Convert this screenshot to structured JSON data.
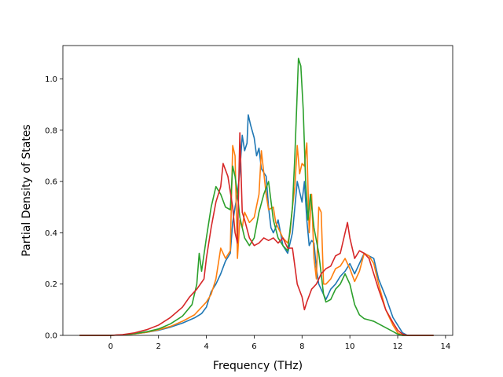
{
  "chart_data": {
    "type": "line",
    "xlabel": "Frequency (THz)",
    "ylabel": "Partial Density of States",
    "xlim": [
      -2.0,
      14.3
    ],
    "ylim": [
      0.0,
      1.13
    ],
    "xticks": [
      0,
      2,
      4,
      6,
      8,
      10,
      12,
      14
    ],
    "yticks": [
      0.0,
      0.2,
      0.4,
      0.6,
      0.8,
      1.0
    ],
    "grid": false,
    "legend": "none",
    "series": [
      {
        "color": "#1f77b4",
        "points": [
          [
            -1.3,
            0
          ],
          [
            0,
            0
          ],
          [
            0.5,
            0.002
          ],
          [
            1,
            0.006
          ],
          [
            1.5,
            0.012
          ],
          [
            2,
            0.02
          ],
          [
            2.5,
            0.032
          ],
          [
            3,
            0.048
          ],
          [
            3.5,
            0.068
          ],
          [
            3.8,
            0.085
          ],
          [
            4,
            0.11
          ],
          [
            4.2,
            0.17
          ],
          [
            4.4,
            0.2
          ],
          [
            4.6,
            0.24
          ],
          [
            4.8,
            0.29
          ],
          [
            5,
            0.32
          ],
          [
            5.1,
            0.44
          ],
          [
            5.2,
            0.5
          ],
          [
            5.3,
            0.55
          ],
          [
            5.4,
            0.64
          ],
          [
            5.5,
            0.78
          ],
          [
            5.6,
            0.72
          ],
          [
            5.7,
            0.75
          ],
          [
            5.75,
            0.86
          ],
          [
            5.85,
            0.82
          ],
          [
            6,
            0.77
          ],
          [
            6.1,
            0.7
          ],
          [
            6.2,
            0.73
          ],
          [
            6.3,
            0.65
          ],
          [
            6.5,
            0.62
          ],
          [
            6.6,
            0.5
          ],
          [
            6.7,
            0.42
          ],
          [
            6.8,
            0.4
          ],
          [
            6.9,
            0.42
          ],
          [
            7,
            0.45
          ],
          [
            7.1,
            0.4
          ],
          [
            7.2,
            0.35
          ],
          [
            7.4,
            0.32
          ],
          [
            7.6,
            0.4
          ],
          [
            7.7,
            0.5
          ],
          [
            7.8,
            0.6
          ],
          [
            7.9,
            0.56
          ],
          [
            8,
            0.52
          ],
          [
            8.1,
            0.6
          ],
          [
            8.2,
            0.45
          ],
          [
            8.3,
            0.35
          ],
          [
            8.4,
            0.37
          ],
          [
            8.5,
            0.36
          ],
          [
            8.6,
            0.26
          ],
          [
            8.7,
            0.2
          ],
          [
            8.9,
            0.16
          ],
          [
            9,
            0.14
          ],
          [
            9.2,
            0.18
          ],
          [
            9.4,
            0.2
          ],
          [
            9.6,
            0.23
          ],
          [
            9.8,
            0.25
          ],
          [
            10,
            0.28
          ],
          [
            10.2,
            0.24
          ],
          [
            10.4,
            0.28
          ],
          [
            10.6,
            0.32
          ],
          [
            10.8,
            0.31
          ],
          [
            11,
            0.3
          ],
          [
            11.2,
            0.22
          ],
          [
            11.5,
            0.15
          ],
          [
            11.8,
            0.07
          ],
          [
            12,
            0.04
          ],
          [
            12.2,
            0.01
          ],
          [
            12.4,
            0
          ],
          [
            13.5,
            0
          ]
        ]
      },
      {
        "color": "#ff7f0e",
        "points": [
          [
            -1.3,
            0
          ],
          [
            0,
            0
          ],
          [
            0.5,
            0.002
          ],
          [
            1,
            0.006
          ],
          [
            1.5,
            0.012
          ],
          [
            2,
            0.022
          ],
          [
            2.5,
            0.035
          ],
          [
            3,
            0.055
          ],
          [
            3.5,
            0.08
          ],
          [
            4,
            0.13
          ],
          [
            4.2,
            0.16
          ],
          [
            4.4,
            0.22
          ],
          [
            4.6,
            0.34
          ],
          [
            4.8,
            0.3
          ],
          [
            5,
            0.33
          ],
          [
            5.1,
            0.74
          ],
          [
            5.2,
            0.7
          ],
          [
            5.3,
            0.3
          ],
          [
            5.4,
            0.45
          ],
          [
            5.5,
            0.42
          ],
          [
            5.6,
            0.48
          ],
          [
            5.8,
            0.44
          ],
          [
            6,
            0.46
          ],
          [
            6.2,
            0.55
          ],
          [
            6.3,
            0.72
          ],
          [
            6.5,
            0.55
          ],
          [
            6.6,
            0.49
          ],
          [
            6.8,
            0.5
          ],
          [
            6.9,
            0.44
          ],
          [
            7,
            0.42
          ],
          [
            7.2,
            0.38
          ],
          [
            7.4,
            0.36
          ],
          [
            7.5,
            0.4
          ],
          [
            7.6,
            0.5
          ],
          [
            7.7,
            0.58
          ],
          [
            7.8,
            0.74
          ],
          [
            7.9,
            0.63
          ],
          [
            8,
            0.67
          ],
          [
            8.1,
            0.66
          ],
          [
            8.2,
            0.75
          ],
          [
            8.3,
            0.4
          ],
          [
            8.4,
            0.55
          ],
          [
            8.5,
            0.3
          ],
          [
            8.6,
            0.22
          ],
          [
            8.7,
            0.5
          ],
          [
            8.8,
            0.48
          ],
          [
            8.9,
            0.2
          ],
          [
            9,
            0.2
          ],
          [
            9.2,
            0.22
          ],
          [
            9.4,
            0.26
          ],
          [
            9.6,
            0.27
          ],
          [
            9.8,
            0.3
          ],
          [
            10,
            0.26
          ],
          [
            10.2,
            0.21
          ],
          [
            10.4,
            0.25
          ],
          [
            10.6,
            0.32
          ],
          [
            10.8,
            0.31
          ],
          [
            11,
            0.28
          ],
          [
            11.2,
            0.2
          ],
          [
            11.5,
            0.1
          ],
          [
            11.8,
            0.04
          ],
          [
            12,
            0.01
          ],
          [
            12.2,
            0
          ],
          [
            13.5,
            0
          ]
        ]
      },
      {
        "color": "#2ca02c",
        "points": [
          [
            -1.3,
            0
          ],
          [
            0,
            0
          ],
          [
            0.5,
            0.002
          ],
          [
            1,
            0.007
          ],
          [
            1.5,
            0.014
          ],
          [
            2,
            0.025
          ],
          [
            2.5,
            0.045
          ],
          [
            3,
            0.075
          ],
          [
            3.4,
            0.12
          ],
          [
            3.6,
            0.2
          ],
          [
            3.7,
            0.32
          ],
          [
            3.8,
            0.25
          ],
          [
            4,
            0.38
          ],
          [
            4.2,
            0.5
          ],
          [
            4.4,
            0.58
          ],
          [
            4.6,
            0.55
          ],
          [
            4.8,
            0.5
          ],
          [
            5,
            0.49
          ],
          [
            5.1,
            0.66
          ],
          [
            5.2,
            0.62
          ],
          [
            5.3,
            0.55
          ],
          [
            5.4,
            0.46
          ],
          [
            5.6,
            0.38
          ],
          [
            5.8,
            0.35
          ],
          [
            6,
            0.38
          ],
          [
            6.2,
            0.48
          ],
          [
            6.4,
            0.55
          ],
          [
            6.6,
            0.6
          ],
          [
            6.8,
            0.45
          ],
          [
            7,
            0.38
          ],
          [
            7.2,
            0.35
          ],
          [
            7.4,
            0.33
          ],
          [
            7.6,
            0.5
          ],
          [
            7.7,
            0.7
          ],
          [
            7.8,
            0.95
          ],
          [
            7.85,
            1.08
          ],
          [
            7.95,
            1.05
          ],
          [
            8.05,
            0.88
          ],
          [
            8.15,
            0.6
          ],
          [
            8.25,
            0.45
          ],
          [
            8.35,
            0.55
          ],
          [
            8.5,
            0.42
          ],
          [
            8.7,
            0.32
          ],
          [
            8.9,
            0.16
          ],
          [
            9,
            0.13
          ],
          [
            9.2,
            0.14
          ],
          [
            9.4,
            0.18
          ],
          [
            9.6,
            0.2
          ],
          [
            9.8,
            0.24
          ],
          [
            10,
            0.2
          ],
          [
            10.2,
            0.12
          ],
          [
            10.4,
            0.08
          ],
          [
            10.6,
            0.065
          ],
          [
            10.8,
            0.06
          ],
          [
            11,
            0.055
          ],
          [
            11.2,
            0.045
          ],
          [
            11.5,
            0.03
          ],
          [
            11.8,
            0.015
          ],
          [
            12,
            0.005
          ],
          [
            12.2,
            0
          ],
          [
            13.5,
            0
          ]
        ]
      },
      {
        "color": "#d62728",
        "points": [
          [
            -1.3,
            0
          ],
          [
            0,
            0
          ],
          [
            0.5,
            0.003
          ],
          [
            1,
            0.01
          ],
          [
            1.5,
            0.022
          ],
          [
            2,
            0.04
          ],
          [
            2.5,
            0.07
          ],
          [
            3,
            0.11
          ],
          [
            3.3,
            0.15
          ],
          [
            3.6,
            0.18
          ],
          [
            3.9,
            0.22
          ],
          [
            4,
            0.3
          ],
          [
            4.2,
            0.42
          ],
          [
            4.4,
            0.52
          ],
          [
            4.6,
            0.58
          ],
          [
            4.7,
            0.67
          ],
          [
            4.9,
            0.62
          ],
          [
            5.1,
            0.5
          ],
          [
            5.2,
            0.4
          ],
          [
            5.3,
            0.36
          ],
          [
            5.4,
            0.79
          ],
          [
            5.5,
            0.48
          ],
          [
            5.6,
            0.45
          ],
          [
            5.8,
            0.38
          ],
          [
            6,
            0.35
          ],
          [
            6.2,
            0.36
          ],
          [
            6.4,
            0.38
          ],
          [
            6.6,
            0.37
          ],
          [
            6.8,
            0.38
          ],
          [
            7,
            0.36
          ],
          [
            7.2,
            0.38
          ],
          [
            7.4,
            0.34
          ],
          [
            7.6,
            0.34
          ],
          [
            7.8,
            0.2
          ],
          [
            8,
            0.15
          ],
          [
            8.1,
            0.1
          ],
          [
            8.2,
            0.13
          ],
          [
            8.4,
            0.18
          ],
          [
            8.6,
            0.2
          ],
          [
            8.8,
            0.24
          ],
          [
            9,
            0.26
          ],
          [
            9.2,
            0.27
          ],
          [
            9.4,
            0.31
          ],
          [
            9.6,
            0.32
          ],
          [
            9.8,
            0.4
          ],
          [
            9.9,
            0.44
          ],
          [
            10,
            0.38
          ],
          [
            10.2,
            0.3
          ],
          [
            10.4,
            0.33
          ],
          [
            10.6,
            0.32
          ],
          [
            10.8,
            0.3
          ],
          [
            11,
            0.24
          ],
          [
            11.2,
            0.18
          ],
          [
            11.5,
            0.1
          ],
          [
            11.8,
            0.05
          ],
          [
            12,
            0.02
          ],
          [
            12.2,
            0.005
          ],
          [
            12.4,
            0
          ],
          [
            13.5,
            0
          ]
        ]
      }
    ]
  }
}
